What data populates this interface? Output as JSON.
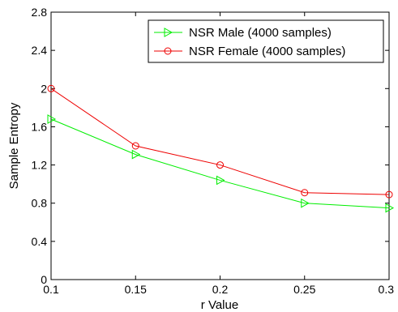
{
  "chart_data": {
    "type": "line",
    "title": "",
    "xlabel": "r Value",
    "ylabel": "Sample Entropy",
    "xlim": [
      0.1,
      0.3
    ],
    "ylim": [
      0,
      2.8
    ],
    "xticks": [
      0.1,
      0.15,
      0.2,
      0.25,
      0.3
    ],
    "xtick_labels": [
      "0.1",
      "0.15",
      "0.2",
      "0.25",
      "0.3"
    ],
    "yticks": [
      0,
      0.4,
      0.8,
      1.2,
      1.6,
      2,
      2.4,
      2.8
    ],
    "ytick_labels": [
      "0",
      "0.4",
      "0.8",
      "1.2",
      "1.6",
      "2",
      "2.4",
      "2.8"
    ],
    "grid": false,
    "legend_position": "top-right",
    "x": [
      0.1,
      0.15,
      0.2,
      0.25,
      0.3
    ],
    "series": [
      {
        "name": "NSR Male (4000 samples)",
        "color": "#00ee00",
        "marker": "triangle-right",
        "values": [
          1.68,
          1.31,
          1.04,
          0.8,
          0.75
        ]
      },
      {
        "name": "NSR Female (4000 samples)",
        "color": "#ee0000",
        "marker": "circle",
        "values": [
          2.0,
          1.4,
          1.2,
          0.91,
          0.89
        ]
      }
    ]
  }
}
